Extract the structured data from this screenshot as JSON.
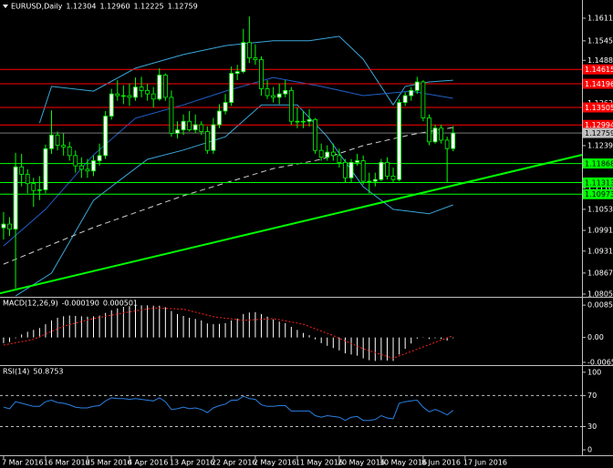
{
  "chart_data": [
    {
      "type": "candlestick",
      "title": "EURUSD,Daily",
      "last_bar_labels": [
        "1.12304",
        "1.12960",
        "1.12225",
        "1.12759"
      ],
      "xlim": [
        -0.6,
        96.5
      ],
      "ylim": [
        1.07975,
        1.16642
      ],
      "yticks": [
        {
          "value": 1.1611,
          "label": "1.16110"
        },
        {
          "value": 1.1545,
          "label": "1.15450"
        },
        {
          "value": 1.1488,
          "label": "1.14880"
        },
        {
          "value": 1.1363,
          "label": "1.13630"
        },
        {
          "value": 1.1239,
          "label": "1.12390"
        },
        {
          "value": 1.1116,
          "label": "1.11160"
        },
        {
          "value": 1.1053,
          "label": "1.10530"
        },
        1.09915,
        {
          "value": 1.0931,
          "label": "1.09310"
        },
        {
          "value": 1.0867,
          "label": "1.08670"
        },
        1.08055
      ],
      "open": [
        1.0999,
        1.101,
        1.0995,
        1.1177,
        1.1155,
        1.1128,
        1.1108,
        1.111,
        1.123,
        1.127,
        1.124,
        1.1235,
        1.121,
        1.118,
        1.117,
        1.1165,
        1.1195,
        1.121,
        1.1325,
        1.139,
        1.1385,
        1.1385,
        1.138,
        1.141,
        1.14,
        1.139,
        1.1375,
        1.1445,
        1.138,
        1.1275,
        1.1285,
        1.131,
        1.1285,
        1.13,
        1.128,
        1.1225,
        1.13,
        1.134,
        1.1365,
        1.145,
        1.1455,
        1.154,
        1.1495,
        1.149,
        1.1405,
        1.1385,
        1.138,
        1.139,
        1.14,
        1.131,
        1.131,
        1.131,
        1.1315,
        1.1225,
        1.1205,
        1.122,
        1.121,
        1.119,
        1.1145,
        1.119,
        1.1195,
        1.1135,
        1.1135,
        1.114,
        1.119,
        1.115,
        1.114,
        1.1365,
        1.1385,
        1.14,
        1.1425,
        1.132,
        1.125,
        1.129,
        1.1255,
        1.12304
      ],
      "high": [
        1.1045,
        1.103,
        1.1218,
        1.1215,
        1.117,
        1.1145,
        1.115,
        1.1242,
        1.1342,
        1.128,
        1.1275,
        1.125,
        1.1225,
        1.1205,
        1.12,
        1.121,
        1.1245,
        1.134,
        1.1405,
        1.143,
        1.1415,
        1.142,
        1.1438,
        1.144,
        1.142,
        1.141,
        1.1465,
        1.145,
        1.14,
        1.131,
        1.133,
        1.134,
        1.133,
        1.131,
        1.1295,
        1.132,
        1.136,
        1.139,
        1.147,
        1.1475,
        1.158,
        1.1616,
        1.1535,
        1.15,
        1.143,
        1.141,
        1.142,
        1.143,
        1.141,
        1.135,
        1.134,
        1.1345,
        1.132,
        1.1245,
        1.124,
        1.1245,
        1.123,
        1.12,
        1.12,
        1.1215,
        1.121,
        1.116,
        1.116,
        1.12,
        1.1205,
        1.1175,
        1.1375,
        1.1395,
        1.141,
        1.144,
        1.143,
        1.133,
        1.13,
        1.13,
        1.1265,
        1.1296
      ],
      "low": [
        1.0965,
        1.0975,
        1.0822,
        1.112,
        1.11,
        1.106,
        1.108,
        1.11,
        1.1215,
        1.1225,
        1.121,
        1.1195,
        1.116,
        1.1145,
        1.1145,
        1.115,
        1.118,
        1.12,
        1.1315,
        1.137,
        1.136,
        1.1355,
        1.137,
        1.138,
        1.137,
        1.135,
        1.137,
        1.137,
        1.1265,
        1.126,
        1.127,
        1.128,
        1.1275,
        1.127,
        1.1215,
        1.1215,
        1.129,
        1.133,
        1.1355,
        1.143,
        1.145,
        1.148,
        1.1475,
        1.1385,
        1.1375,
        1.1365,
        1.136,
        1.138,
        1.13,
        1.129,
        1.129,
        1.1295,
        1.1215,
        1.1195,
        1.1195,
        1.1195,
        1.1175,
        1.113,
        1.113,
        1.118,
        1.1125,
        1.11,
        1.112,
        1.1135,
        1.114,
        1.113,
        1.1135,
        1.1355,
        1.137,
        1.139,
        1.131,
        1.124,
        1.1245,
        1.1245,
        1.1132,
        1.12225
      ],
      "close": [
        1.101,
        1.0995,
        1.1177,
        1.1155,
        1.1128,
        1.1108,
        1.111,
        1.123,
        1.127,
        1.124,
        1.1235,
        1.121,
        1.118,
        1.117,
        1.1165,
        1.1195,
        1.121,
        1.1325,
        1.139,
        1.1385,
        1.1385,
        1.138,
        1.141,
        1.14,
        1.139,
        1.1375,
        1.1445,
        1.138,
        1.1275,
        1.1285,
        1.131,
        1.1285,
        1.13,
        1.128,
        1.1225,
        1.13,
        1.134,
        1.1365,
        1.145,
        1.1455,
        1.154,
        1.1495,
        1.149,
        1.1405,
        1.1385,
        1.138,
        1.139,
        1.14,
        1.131,
        1.131,
        1.131,
        1.1315,
        1.1225,
        1.1205,
        1.122,
        1.121,
        1.119,
        1.1145,
        1.119,
        1.1195,
        1.1135,
        1.1135,
        1.114,
        1.119,
        1.115,
        1.114,
        1.1365,
        1.1385,
        1.14,
        1.1425,
        1.132,
        1.125,
        1.129,
        1.1255,
        1.12304,
        1.12759
      ],
      "candle_color": "#00ff00",
      "overlays": [
        {
          "color": "#3aa6d8",
          "style": "solid",
          "x": [
            6,
            8,
            15,
            22,
            30,
            37,
            45,
            51,
            56,
            60,
            65,
            67,
            71,
            75
          ],
          "values": [
            1.1305,
            1.1412,
            1.1398,
            1.1465,
            1.1505,
            1.1531,
            1.1545,
            1.1545,
            1.1558,
            1.1491,
            1.1358,
            1.1412,
            1.1425,
            1.143
          ]
        },
        {
          "color": "#3aa6d8",
          "style": "solid",
          "x": [
            2,
            8,
            15,
            19,
            24,
            30,
            37,
            43,
            49,
            54,
            60,
            65,
            71,
            75
          ],
          "values": [
            1.08,
            1.0867,
            1.1079,
            1.1133,
            1.1199,
            1.1226,
            1.1265,
            1.1358,
            1.1358,
            1.1265,
            1.1119,
            1.1053,
            1.104,
            1.1066
          ]
        },
        {
          "color": "#2060c8",
          "style": "solid",
          "x": [
            0,
            7,
            15,
            22,
            30,
            37,
            45,
            53,
            60,
            68,
            75
          ],
          "values": [
            1.0946,
            1.1053,
            1.1212,
            1.1319,
            1.1358,
            1.1398,
            1.1438,
            1.1412,
            1.1385,
            1.1398,
            1.1377
          ]
        },
        {
          "color": "#d0d0d0",
          "style": "dashed",
          "x": [
            0,
            15,
            30,
            45,
            53,
            60,
            68,
            75
          ],
          "values": [
            1.0893,
            1.1,
            1.1093,
            1.1172,
            1.1199,
            1.1239,
            1.1271,
            1.1292
          ]
        }
      ],
      "trendlines": [
        {
          "color": "#00ff00",
          "x": [
            -0.6,
            96.5
          ],
          "values": [
            1.0808,
            1.1212
          ]
        }
      ],
      "levels": [
        {
          "value": 1.14615,
          "color": "#ff0000"
        },
        {
          "value": 1.14196,
          "color": "#ff0000"
        },
        {
          "value": 1.13505,
          "color": "#ff0000"
        },
        {
          "value": 1.12994,
          "color": "#ff0000"
        },
        {
          "value": 1.11868,
          "color": "#00ff00"
        },
        {
          "value": 1.11313,
          "color": "#00ff00"
        },
        {
          "value": 1.10973,
          "color": "#00ff00"
        }
      ],
      "price_line_color": "#c0c0c0"
    },
    {
      "type": "bar",
      "title": "MACD(12,26,9)",
      "last_label": "-0.000190",
      "color": "#ffffff",
      "ylim": [
        -0.0073,
        0.0105
      ],
      "yticks": [
        0.008545,
        {
          "value": 0,
          "label": "0.00"
        },
        -0.006553
      ],
      "values": [
        -0.0015,
        -0.0012,
        -0.0002,
        0.0008,
        0.0015,
        0.002,
        0.0025,
        0.0035,
        0.0045,
        0.0052,
        0.0056,
        0.0058,
        0.0057,
        0.0056,
        0.0055,
        0.0056,
        0.0058,
        0.0065,
        0.0072,
        0.0077,
        0.0081,
        0.0083,
        0.0085,
        0.0085,
        0.0085,
        0.0084,
        0.0084,
        0.008,
        0.007,
        0.0062,
        0.0057,
        0.0052,
        0.0049,
        0.0045,
        0.0037,
        0.0035,
        0.0036,
        0.0038,
        0.0045,
        0.005,
        0.0062,
        0.0066,
        0.0067,
        0.0062,
        0.0055,
        0.0048,
        0.0042,
        0.0038,
        0.0028,
        0.002,
        0.0012,
        0.0006,
        -0.0005,
        -0.0015,
        -0.0022,
        -0.0028,
        -0.0034,
        -0.0042,
        -0.0045,
        -0.0048,
        -0.0055,
        -0.006,
        -0.0062,
        -0.006,
        -0.0061,
        -0.0062,
        -0.0045,
        -0.003,
        -0.0016,
        -0.0003,
        -0.0001,
        -0.0004,
        -0.0002,
        -0.0004,
        -0.0008,
        -0.00019
      ],
      "signal": {
        "color": "#ff2020",
        "x": [
          0,
          5,
          10,
          15,
          20,
          25,
          30,
          35,
          40,
          45,
          50,
          55,
          60,
          65,
          70,
          75
        ],
        "values": [
          -0.002,
          -0.0005,
          0.003,
          0.005,
          0.0065,
          0.0078,
          0.0075,
          0.0055,
          0.0045,
          0.005,
          0.0035,
          0.0005,
          -0.003,
          -0.0055,
          -0.0025,
          0.000501
        ]
      }
    },
    {
      "type": "line",
      "title": "RSI(14)",
      "color": "#2a7fe0",
      "ylim": [
        -7,
        108
      ],
      "yticks": [
        100,
        70,
        30,
        0
      ],
      "levels": [
        70,
        30
      ],
      "values": [
        55,
        53,
        62,
        60,
        58,
        56,
        56,
        62,
        64,
        61,
        60,
        58,
        55,
        54,
        54,
        56,
        57,
        63,
        67,
        66,
        66,
        65,
        66,
        65,
        64,
        63,
        67,
        62,
        52,
        53,
        55,
        53,
        54,
        52,
        48,
        54,
        57,
        59,
        64,
        64,
        69,
        66,
        65,
        58,
        56,
        56,
        57,
        57,
        50,
        50,
        50,
        50,
        44,
        42,
        44,
        43,
        42,
        38,
        42,
        43,
        38,
        38,
        39,
        44,
        41,
        40,
        60,
        62,
        63,
        64,
        55,
        49,
        52,
        49,
        45,
        50.8753
      ],
      "xticks": [
        {
          "value": 0,
          "label": "7 Mar 2016"
        },
        {
          "value": 7,
          "label": "16 Mar 2016"
        },
        {
          "value": 14,
          "label": "25 Mar 2016"
        },
        {
          "value": 21,
          "label": "4 Apr 2016"
        },
        {
          "value": 28,
          "label": "13 Apr 2016"
        },
        {
          "value": 35,
          "label": "22 Apr 2016"
        },
        {
          "value": 42,
          "label": "2 May 2016"
        },
        {
          "value": 49,
          "label": "11 May 2016"
        },
        {
          "value": 56,
          "label": "20 May 2016"
        },
        {
          "value": 63,
          "label": "30 May 2016"
        },
        {
          "value": 70,
          "label": "8 Jun 2016"
        },
        {
          "value": 77,
          "label": "17 Jun 2016"
        }
      ]
    }
  ]
}
